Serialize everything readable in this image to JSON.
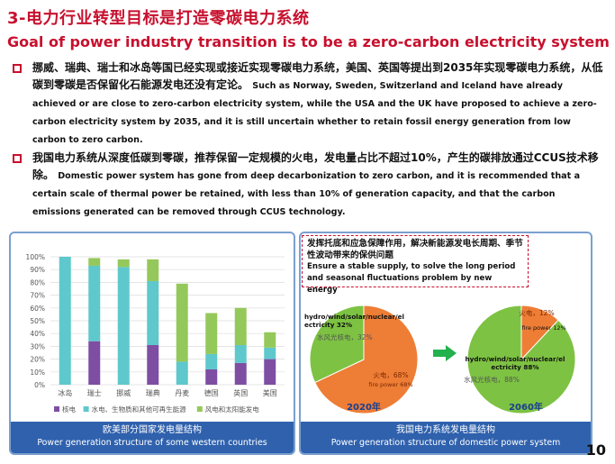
{
  "header": {
    "title_cn": "3-电力行业转型目标是打造零碳电力系统",
    "title_en": "Goal of power industry transition is to be a zero-carbon electricity system"
  },
  "bullets": [
    {
      "cn": "挪威、瑞典、瑞士和冰岛等国已经实现或接近实现零碳电力系统，美国、英国等提出到2035年实现零碳电力系统，从低碳到零碳是否保留化石能源发电还没有定论。",
      "en": "Such as Norway, Sweden, Switzerland and Iceland have already achieved or are close to zero-carbon electricity system, while the USA and the UK have proposed to achieve a zero-carbon electricity system by 2035, and it is still uncertain whether to retain fossil energy generation from low carbon to zero carbon."
    },
    {
      "cn": "我国电力系统从深度低碳到零碳，推荐保留一定规模的火电，发电量占比不超过10%，产生的碳排放通过CCUS技术移除。",
      "en": "Domestic power system has gone from deep decarbonization to zero carbon, and it is recommended that a certain scale of thermal power be retained, with less than 10% of generation capacity, and that the carbon emissions generated can be removed through CCUS technology."
    }
  ],
  "left_caption": {
    "cn": "欧美部分国家发电量结构",
    "en": "Power generation structure of some western countries"
  },
  "right_caption": {
    "cn": "我国电力系统发电量结构",
    "en": "Power generation structure of domestic power system"
  },
  "note": {
    "cn": "发挥托底和应急保障作用，解决新能源发电长周期、季节性波动带来的保供问题",
    "en": "Ensure a stable supply, to solve the long period and seasonal fluctuations problem by new energy"
  },
  "page_number": "10",
  "colors": {
    "red": "#c8102e",
    "blue": "#2f61ad",
    "nuclear": "#7e4ea3",
    "hydro": "#5ec8cc",
    "wind": "#95c85a",
    "fire": "#ee7d36",
    "green_pie": "#7dc242",
    "arrow": "#22b14c"
  },
  "chart_data": [
    {
      "type": "bar",
      "stacked": true,
      "categories": [
        "冰岛",
        "瑞士",
        "挪威",
        "瑞典",
        "丹麦",
        "德国",
        "英国",
        "美国"
      ],
      "series": [
        {
          "name": "核电",
          "values": [
            0,
            34,
            0,
            31,
            0,
            12,
            17,
            20
          ]
        },
        {
          "name": "水电、生物质和其他可再生能源",
          "values": [
            100,
            59,
            92,
            50,
            18,
            12,
            14,
            9
          ]
        },
        {
          "name": "风电和太阳能发电",
          "values": [
            0,
            6,
            6,
            17,
            61,
            32,
            29,
            12
          ]
        }
      ],
      "yticks": [
        "0%",
        "10%",
        "20%",
        "30%",
        "40%",
        "50%",
        "60%",
        "70%",
        "80%",
        "90%",
        "100%"
      ],
      "ylim": [
        0,
        100
      ],
      "grid": true,
      "legend_position": "bottom"
    },
    {
      "type": "pie",
      "year_label": "2020年",
      "slices": [
        {
          "label_cn": "火电，68%",
          "label_en": "fire power 68%",
          "value": 68
        },
        {
          "label_cn": "水风光核电，32%",
          "label_en": "hydro/wind/solar/nuclear/electricity 32%",
          "value": 32
        }
      ]
    },
    {
      "type": "pie",
      "year_label": "2060年",
      "slices": [
        {
          "label_cn": "火电，12%",
          "label_en": "fire power 12%",
          "value": 12
        },
        {
          "label_cn": "水风光核电，88%",
          "label_en": "hydro/wind/solar/nuclear/electricity 88%",
          "value": 88
        }
      ]
    }
  ]
}
